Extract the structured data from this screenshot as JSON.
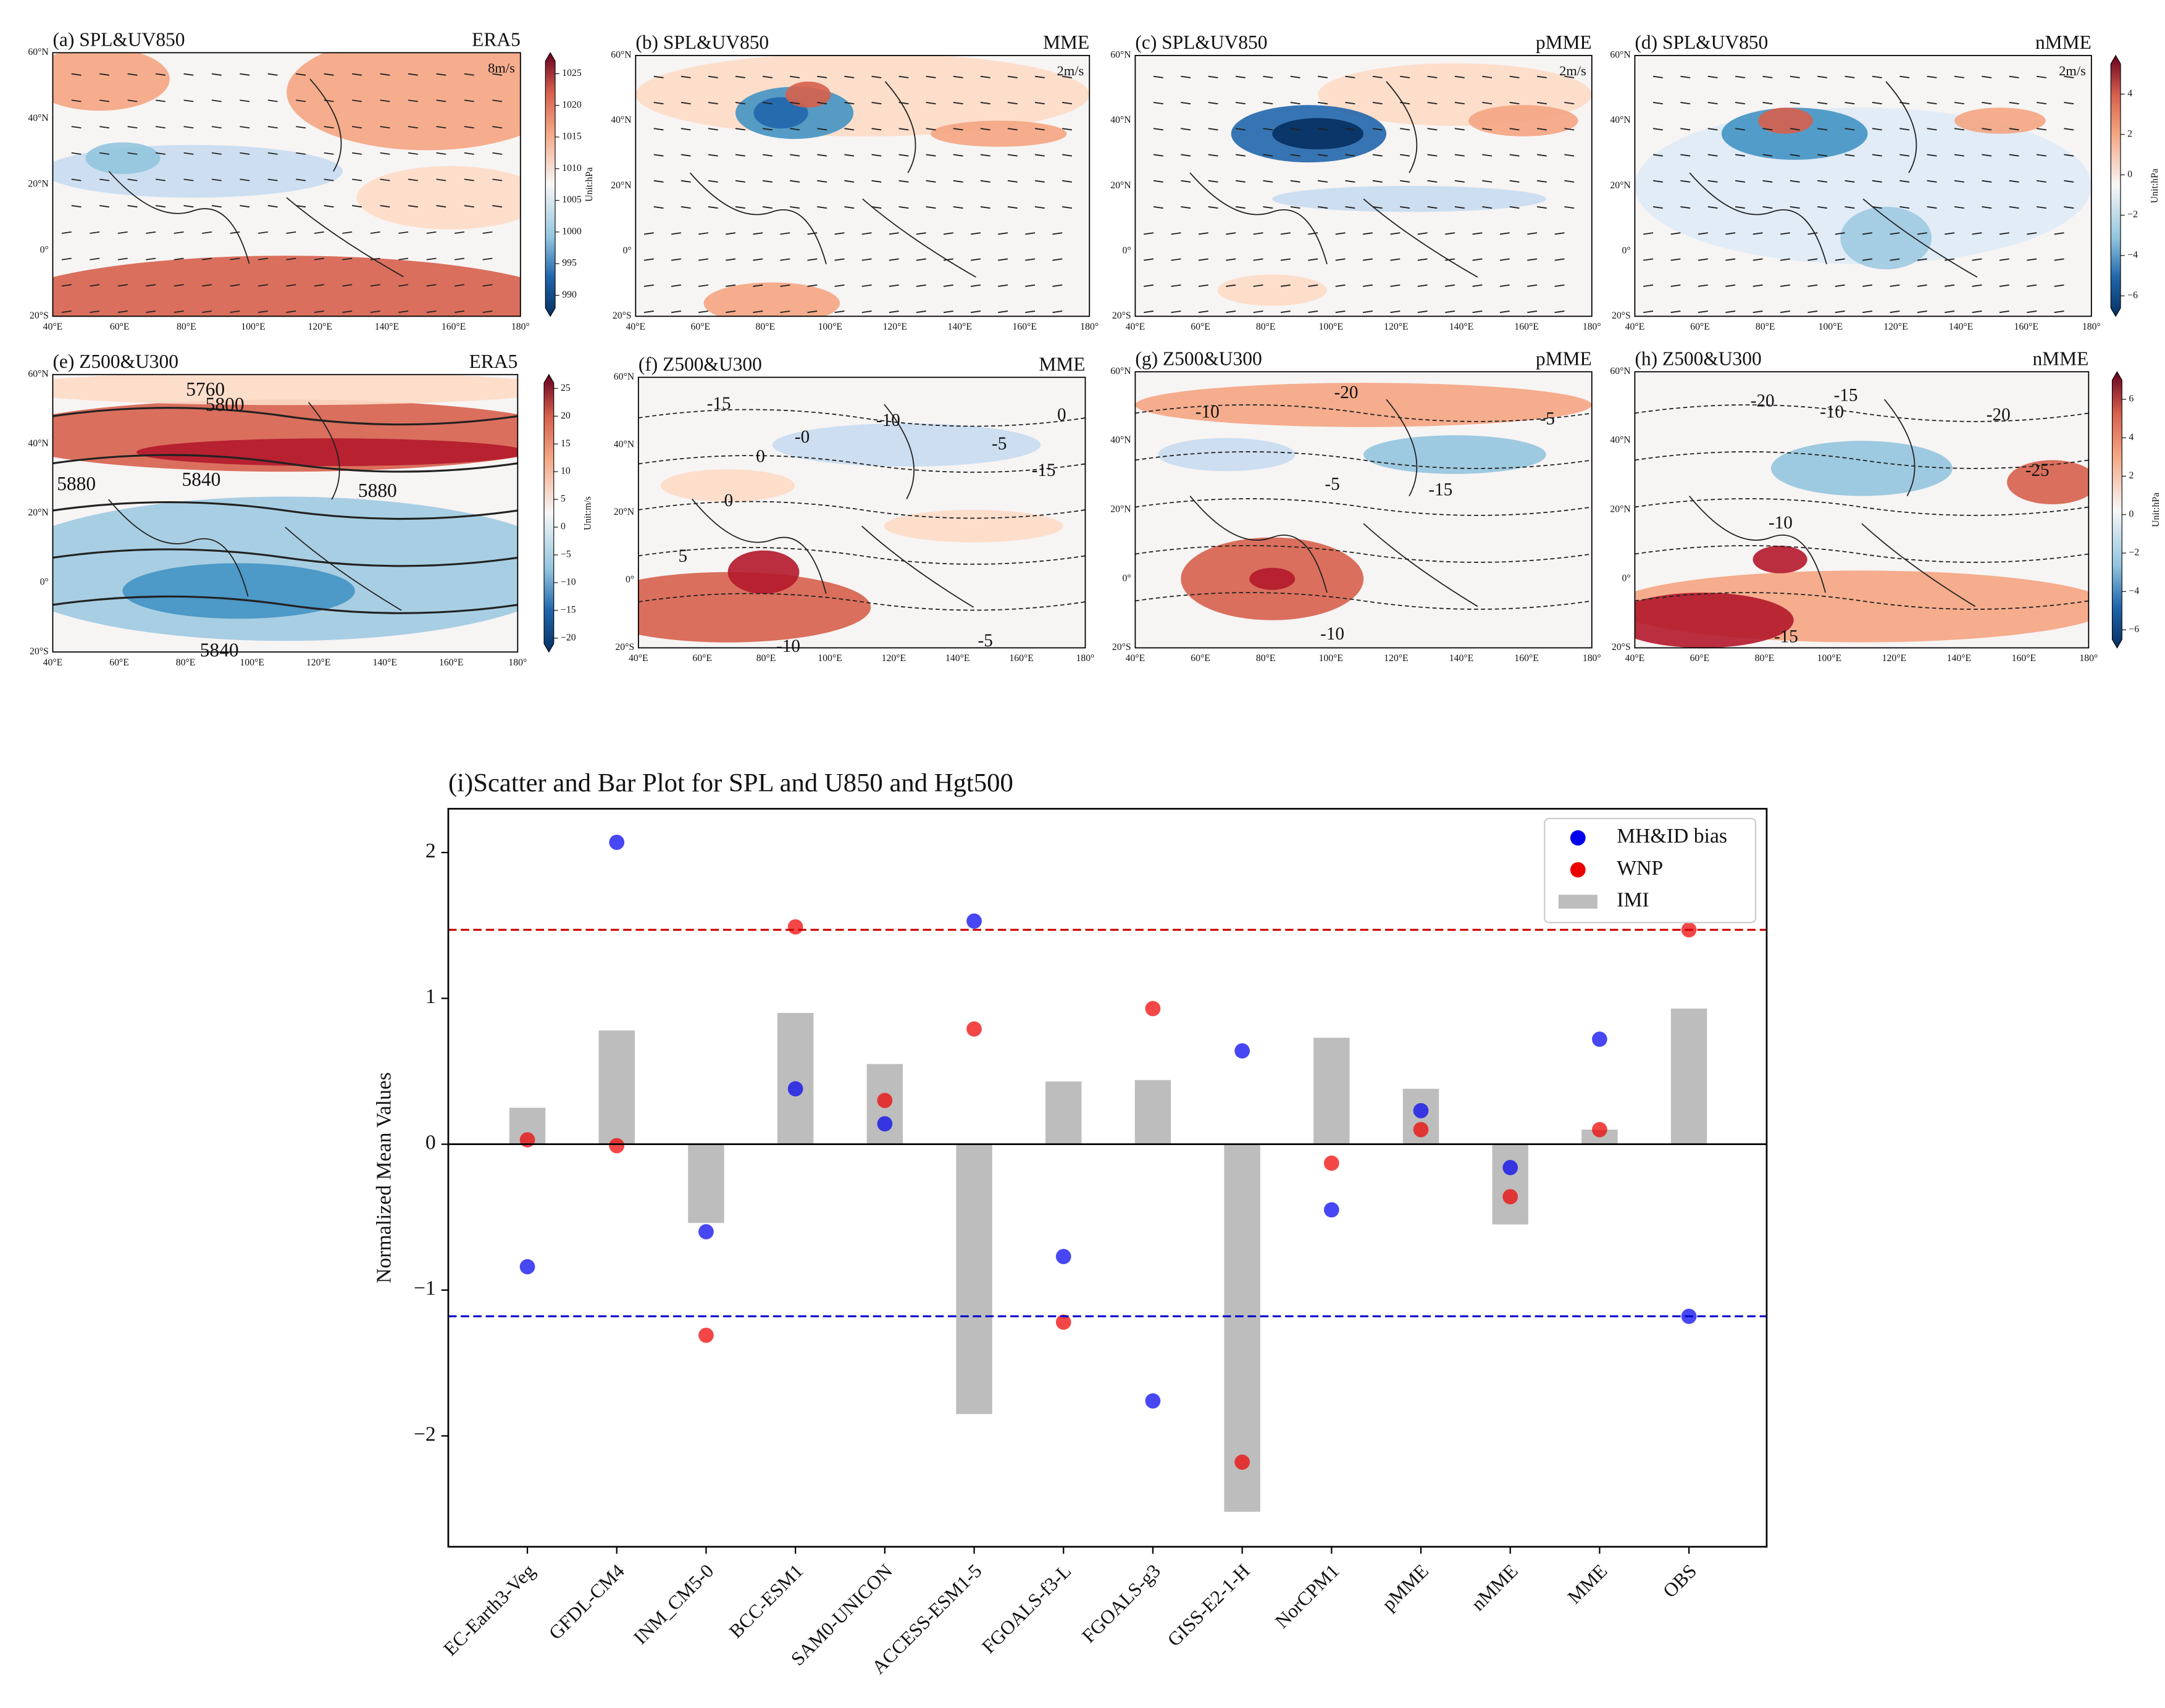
{
  "maps": {
    "lon_ticks": [
      "40°E",
      "60°E",
      "80°E",
      "100°E",
      "120°E",
      "140°E",
      "160°E",
      "180°"
    ],
    "lat_ticks": [
      "20°S",
      "0°",
      "20°N",
      "40°N",
      "60°N"
    ],
    "panels": [
      {
        "title": "(a) SPL&UV850",
        "label": "ERA5",
        "vector_label": "8m/s",
        "colorbar": {
          "lim": [
            988,
            1027
          ],
          "ticks": [
            990,
            995,
            1000,
            1005,
            1010,
            1015,
            1020,
            1025
          ],
          "unit": "Unit:hPa"
        }
      },
      {
        "title": "(b) SPL&UV850",
        "label": "MME",
        "vector_label": "2m/s"
      },
      {
        "title": "(c) SPL&UV850",
        "label": "pMME",
        "vector_label": "2m/s"
      },
      {
        "title": "(d) SPL&UV850",
        "label": "nMME",
        "vector_label": "2m/s",
        "colorbar": {
          "lim": [
            -6.6,
            5.5
          ],
          "ticks": [
            {
              "value": -6,
              "label": "−6"
            },
            {
              "value": -4,
              "label": "−4"
            },
            {
              "value": -2,
              "label": "−2"
            },
            0,
            2,
            4
          ],
          "unit": "Unit:hPa"
        }
      },
      {
        "title": "(e) Z500&U300",
        "label": "ERA5",
        "contour_labels": [
          "5760",
          "5800",
          "5840",
          "5880",
          "5880",
          "5840"
        ],
        "colorbar": {
          "lim": [
            -21,
            26
          ],
          "ticks": [
            {
              "value": -20,
              "label": "−20"
            },
            {
              "value": -15,
              "label": "−15"
            },
            {
              "value": -10,
              "label": "−10"
            },
            {
              "value": -5,
              "label": "−5"
            },
            0,
            5,
            10,
            15,
            20,
            25
          ],
          "unit": "Unit:m/s"
        }
      },
      {
        "title": "(f) Z500&U300",
        "label": "MME",
        "contour_labels": [
          "-15",
          "-10",
          "0",
          "-0",
          "0",
          "-5",
          "-15",
          "0",
          "5",
          "-5",
          "-10"
        ]
      },
      {
        "title": "(g) Z500&U300",
        "label": "pMME",
        "contour_labels": [
          "-10",
          "-20",
          "-5",
          "-5",
          "-15",
          "-10"
        ]
      },
      {
        "title": "(h) Z500&U300",
        "label": "nMME",
        "contour_labels": [
          "-20",
          "-15",
          "-10",
          "-20",
          "-25",
          "-10",
          "-15"
        ],
        "colorbar": {
          "lim": [
            -6.5,
            7
          ],
          "ticks": [
            {
              "value": -6,
              "label": "−6"
            },
            {
              "value": -4,
              "label": "−4"
            },
            {
              "value": -2,
              "label": "−2"
            },
            0,
            2,
            4,
            6
          ],
          "unit": "Unit:hPa"
        }
      }
    ]
  },
  "chart_data": {
    "type": "scatter_bar",
    "title": "(i)Scatter and Bar Plot for SPL and U850 and Hgt500",
    "ylabel": "Normalized Mean Values",
    "categories": [
      "EC-Earth3-Veg",
      "GFDL-CM4",
      "INM_CM5-0",
      "BCC-ESM1",
      "SAM0-UNICON",
      "ACCESS-ESM1-5",
      "FGOALS-f3-L",
      "FGOALS-g3",
      "GISS-E2-1-H",
      "NorCPM1",
      "pMME",
      "nMME",
      "MME",
      "OBS"
    ],
    "series": [
      {
        "name": "MH&ID bias",
        "kind": "scatter",
        "color": "#0000ee",
        "values": [
          -0.84,
          2.07,
          -0.6,
          0.38,
          0.14,
          1.53,
          -0.77,
          -1.76,
          0.64,
          -0.45,
          0.23,
          -0.16,
          0.72,
          -1.18
        ]
      },
      {
        "name": "WNP",
        "kind": "scatter",
        "color": "#ee0000",
        "values": [
          0.03,
          -0.01,
          -1.31,
          1.49,
          0.3,
          0.79,
          -1.22,
          0.93,
          -2.18,
          -0.13,
          0.1,
          -0.36,
          0.1,
          1.47
        ]
      },
      {
        "name": "IMI",
        "kind": "bar",
        "color": "#bdbdbd",
        "values": [
          0.25,
          0.78,
          -0.54,
          0.9,
          0.55,
          -1.85,
          0.43,
          0.44,
          -2.52,
          0.73,
          0.38,
          -0.55,
          0.1,
          0.93
        ]
      }
    ],
    "hlines": [
      {
        "value": 1.47,
        "color": "#cc0000"
      },
      {
        "value": -1.18,
        "color": "#0000cc"
      }
    ],
    "ylim": [
      -2.76,
      2.3
    ],
    "yticks": [
      {
        "value": -2,
        "label": "−2"
      },
      {
        "value": -1,
        "label": "−1"
      },
      0,
      1,
      2
    ],
    "legend": "upper right"
  }
}
